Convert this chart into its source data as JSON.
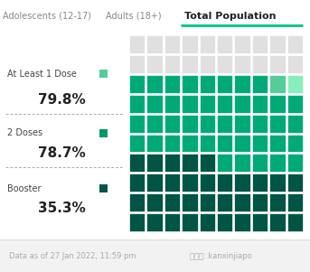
{
  "title_tabs": [
    "Adolescents (12-17)",
    "Adults (18+)",
    "Total Population"
  ],
  "active_tab": "Total Population",
  "tab_colors_text": [
    "#888888",
    "#888888",
    "#222222"
  ],
  "active_tab_underline": "#00c389",
  "grid_rows": 10,
  "grid_cols": 10,
  "labels": [
    "At Least 1 Dose",
    "2 Doses",
    "Booster"
  ],
  "values": [
    79.8,
    78.7,
    35.3
  ],
  "swatch_colors": [
    "#55cc99",
    "#009966",
    "#005544"
  ],
  "color_empty": "#e0e0e0",
  "color_dose1_only": "#55cc99",
  "color_dose2": "#00aa77",
  "color_booster": "#005544",
  "color_partial_dose1": "#88eebb",
  "footer_text": "Data as of 27 Jan 2022, 11:59 pm",
  "footer_text2": "微信号: kanxinjiapo",
  "footer_color": "#aaaaaa",
  "bg_color": "#ffffff",
  "footer_bg": "#f2f2f2",
  "dose1_pct": 79.8,
  "dose2_pct": 78.7,
  "booster_pct": 35.3
}
